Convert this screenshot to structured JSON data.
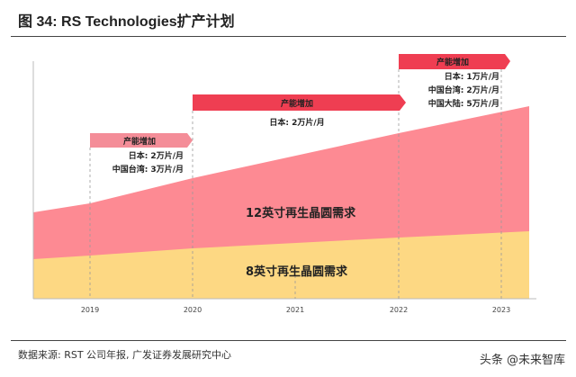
{
  "title": "图 34:  RS Technologies扩产计划",
  "colors": {
    "banner_2019": "#f48d98",
    "banner": "#ef3e52",
    "area_12inch": "#fd8a93",
    "area_8inch": "#fdd883"
  },
  "x_ticks": [
    "2019",
    "2020",
    "2021",
    "2022",
    "2023"
  ],
  "areas": {
    "top": "12英寸再生晶圆需求",
    "bottom": "8英寸再生晶圆需求"
  },
  "expansions": [
    {
      "label": "产能增加",
      "notes": [
        "日本: 2万片/月",
        "中国台湾: 3万片/月"
      ]
    },
    {
      "label": "产能增加",
      "notes": [
        "日本: 2万片/月"
      ]
    },
    {
      "label": "产能增加",
      "notes": [
        "日本: 1万片/月",
        "中国台湾: 2万片/月",
        "中国大陆: 5万片/月"
      ]
    }
  ],
  "source": "数据来源: RST 公司年报, 广发证券发展研究中心",
  "watermark": "头条 @未来智库"
}
